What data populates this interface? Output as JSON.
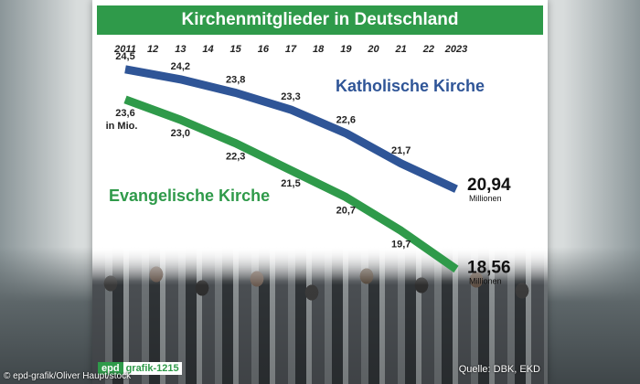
{
  "chart_data": {
    "type": "line",
    "title": "Kirchenmitglieder in Deutschland",
    "x": [
      "2011",
      "12",
      "13",
      "14",
      "15",
      "16",
      "17",
      "18",
      "19",
      "20",
      "21",
      "22",
      "2023"
    ],
    "unit_note": "in Mio.",
    "series": [
      {
        "name": "Katholische Kirche",
        "color": "#2f5597",
        "points": [
          {
            "x": 2011,
            "y": 24.5
          },
          {
            "x": 2013,
            "y": 24.2
          },
          {
            "x": 2015,
            "y": 23.8
          },
          {
            "x": 2017,
            "y": 23.3
          },
          {
            "x": 2019,
            "y": 22.6
          },
          {
            "x": 2021,
            "y": 21.7
          },
          {
            "x": 2023,
            "y": 20.94
          }
        ],
        "labels": [
          "24,5",
          "24,2",
          "23,8",
          "23,3",
          "22,6",
          "21,7",
          "20,94"
        ],
        "final_unit": "Millionen"
      },
      {
        "name": "Evangelische Kirche",
        "color": "#2f9a4a",
        "points": [
          {
            "x": 2011,
            "y": 23.6
          },
          {
            "x": 2013,
            "y": 23.0
          },
          {
            "x": 2015,
            "y": 22.3
          },
          {
            "x": 2017,
            "y": 21.5
          },
          {
            "x": 2019,
            "y": 20.7
          },
          {
            "x": 2021,
            "y": 19.7
          },
          {
            "x": 2023,
            "y": 18.56
          }
        ],
        "labels": [
          "23,6",
          "23,0",
          "22,3",
          "21,5",
          "20,7",
          "19,7",
          "18,56"
        ],
        "final_unit": "Millionen"
      }
    ],
    "xlim": [
      2011,
      2023
    ],
    "ylim": [
      18.0,
      25.2
    ],
    "grid": false,
    "legend": "inline"
  },
  "branding": {
    "part1": "epd",
    "part2": "grafik-1215"
  },
  "source": "Quelle: DBK, EKD",
  "credit": "© epd-grafik/Oliver Haupt/stock"
}
